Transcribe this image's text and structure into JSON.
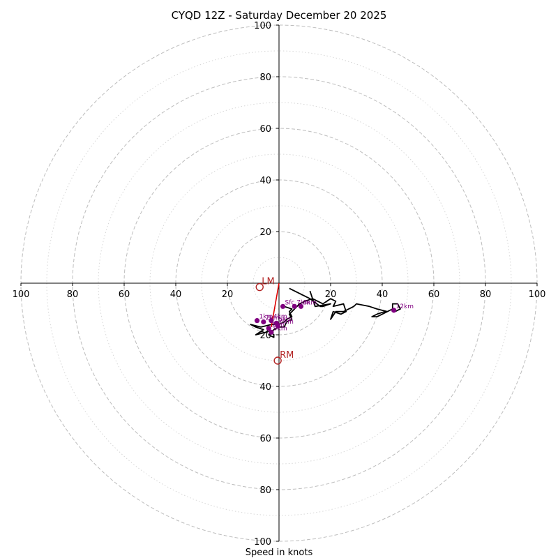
{
  "chart_data": {
    "type": "hodograph",
    "title": "CYQD 12Z - Saturday December 20 2025",
    "xlabel": "Speed in knots",
    "axis_range": [
      -100,
      100
    ],
    "ring_major": [
      20,
      40,
      60,
      80,
      100
    ],
    "ring_minor": [
      10,
      30,
      50,
      70,
      90
    ],
    "x_ticks": [
      "100",
      "80",
      "60",
      "40",
      "20",
      "20",
      "40",
      "60",
      "80",
      "100"
    ],
    "x_tick_values": [
      -100,
      -80,
      -60,
      -40,
      -20,
      20,
      40,
      60,
      80,
      100
    ],
    "y_ticks": [
      "100",
      "80",
      "60",
      "40",
      "20",
      "20",
      "40",
      "60",
      "80",
      "100"
    ],
    "y_tick_values": [
      100,
      80,
      60,
      40,
      20,
      -20,
      -40,
      -60,
      -80,
      -100
    ],
    "trace": [
      [
        2,
        -9
      ],
      [
        5,
        -10
      ],
      [
        4,
        -11
      ],
      [
        5,
        -13
      ],
      [
        3,
        -14
      ],
      [
        2,
        -15
      ],
      [
        0,
        -16
      ],
      [
        -3,
        -16
      ],
      [
        -7,
        -17
      ],
      [
        -11,
        -16
      ],
      [
        -9,
        -17
      ],
      [
        -6,
        -18
      ],
      [
        -9,
        -20
      ],
      [
        -5,
        -19
      ],
      [
        -4,
        -18
      ],
      [
        -3,
        -19
      ],
      [
        -2,
        -20
      ],
      [
        -2,
        -21
      ],
      [
        -4,
        -20
      ],
      [
        -2,
        -18
      ],
      [
        0,
        -17
      ],
      [
        2,
        -17
      ],
      [
        3,
        -15
      ],
      [
        5,
        -14
      ],
      [
        4,
        -12
      ],
      [
        5,
        -11
      ],
      [
        6,
        -10
      ],
      [
        7,
        -9
      ],
      [
        8,
        -8
      ],
      [
        10,
        -7
      ],
      [
        13,
        -6
      ],
      [
        17,
        -8
      ],
      [
        20,
        -6
      ],
      [
        22,
        -7
      ],
      [
        21,
        -9
      ],
      [
        25,
        -8
      ],
      [
        26,
        -11
      ],
      [
        24,
        -12
      ],
      [
        21,
        -11
      ],
      [
        20,
        -14
      ],
      [
        22,
        -11
      ],
      [
        25,
        -11
      ],
      [
        29,
        -9
      ],
      [
        30,
        -8
      ],
      [
        35,
        -9
      ],
      [
        38,
        -10
      ],
      [
        42,
        -11
      ],
      [
        40,
        -12
      ],
      [
        38,
        -13
      ],
      [
        36,
        -13
      ],
      [
        38,
        -12
      ],
      [
        41,
        -11
      ],
      [
        42,
        -11
      ],
      [
        44,
        -10
      ],
      [
        44,
        -8
      ],
      [
        46,
        -8
      ],
      [
        47,
        -10
      ],
      [
        45,
        -11
      ],
      [
        44,
        -10
      ]
    ],
    "trace_tail": [
      [
        4,
        -2
      ],
      [
        12,
        -6
      ],
      [
        16,
        -9
      ],
      [
        17,
        -9
      ],
      [
        20,
        -8
      ],
      [
        14,
        -9
      ],
      [
        12,
        -3
      ]
    ],
    "height_points": [
      {
        "label": "Sfc",
        "u": 1.5,
        "v": -9
      },
      {
        "label": "7km",
        "u": 6,
        "v": -9
      },
      {
        "label": "8km",
        "u": 8.5,
        "v": -9
      },
      {
        "label": "1km",
        "u": -8.5,
        "v": -14.5
      },
      {
        "label": "2km",
        "u": -6,
        "v": -15
      },
      {
        "label": "4km",
        "u": -3,
        "v": -14.5
      },
      {
        "label": "5km",
        "u": -1,
        "v": -15.5
      },
      {
        "label": "6km",
        "u": -0.5,
        "v": -16.5
      },
      {
        "label": "3km",
        "u": -4,
        "v": -17.5
      },
      {
        "label": "9km",
        "u": -3,
        "v": -19
      },
      {
        "label": "12km",
        "u": 44.5,
        "v": -10.5
      }
    ],
    "storm_motion": [
      {
        "label": "LM",
        "u": -7.5,
        "v": -1.5
      },
      {
        "label": "RM",
        "u": -0.5,
        "v": -30
      }
    ],
    "mean_wind_line": [
      [
        0,
        0
      ],
      [
        -3,
        -17
      ]
    ],
    "colors": {
      "grid": "#bdbdbd",
      "trace": "#000000",
      "height_marker": "#800080",
      "storm_motion": "#b22222",
      "mean_wind": "#dd0000"
    }
  }
}
